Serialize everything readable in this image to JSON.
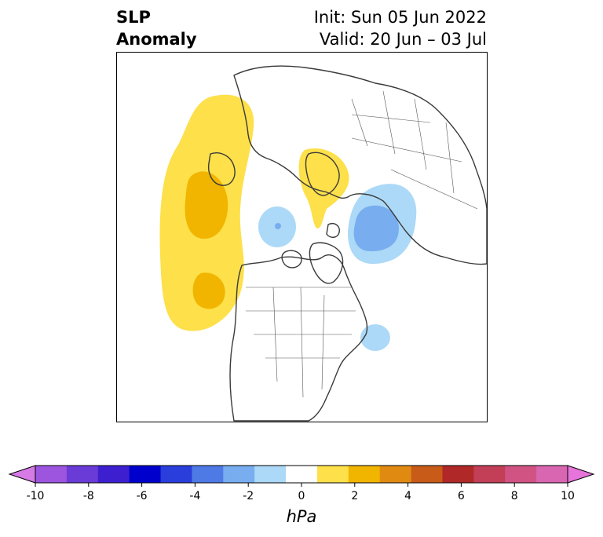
{
  "title": {
    "left_line1": "SLP",
    "left_line2": "Anomaly",
    "right_line1": "Init: Sun 05 Jun 2022",
    "right_line2": "Valid: 20 Jun – 03 Jul"
  },
  "colorbar": {
    "unit": "hPa",
    "tick_labels": [
      "-10",
      "-8",
      "-6",
      "-4",
      "-2",
      "0",
      "2",
      "4",
      "6",
      "8",
      "10"
    ],
    "tick_values": [
      -10,
      -8,
      -6,
      -4,
      -2,
      0,
      2,
      4,
      6,
      8,
      10
    ],
    "colors": [
      "#d67ae6",
      "#9d55df",
      "#6a3bd6",
      "#3d1fd0",
      "#0000cc",
      "#2a3edb",
      "#4e7ae6",
      "#78aef0",
      "#acd9f7",
      "#ffffff",
      "#fde04a",
      "#f1b500",
      "#e18a12",
      "#c85b18",
      "#b02828",
      "#c23f57",
      "#d05383",
      "#d966b1",
      "#e674db"
    ],
    "extend": "both"
  },
  "map": {
    "projection": "polar-stereographic",
    "region": "Northern Hemisphere",
    "anomaly_regions": [
      {
        "name": "north-pacific-positive",
        "sign": "positive",
        "max_level": 3
      },
      {
        "name": "scandinavia-positive",
        "sign": "positive",
        "max_level": 1
      },
      {
        "name": "canadian-arctic-negative",
        "sign": "negative",
        "max_level": -2
      },
      {
        "name": "siberia-negative",
        "sign": "negative",
        "max_level": -3
      },
      {
        "name": "north-atlantic-negative",
        "sign": "negative",
        "max_level": -1
      }
    ]
  }
}
